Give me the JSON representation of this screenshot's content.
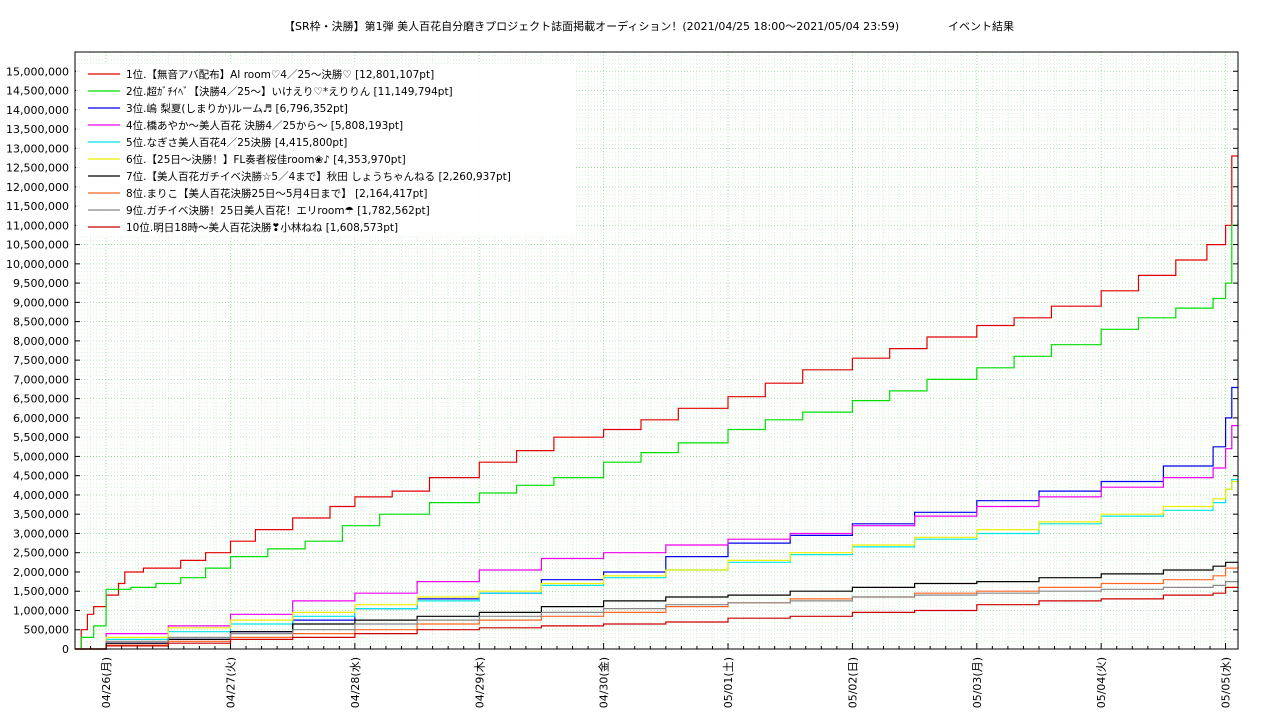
{
  "chart_data": {
    "type": "line",
    "title": "【SR枠・決勝】第1弾 美人百花自分磨きプロジェクト誌面掲載オーディション！(2021/04/25 18:00～2021/05/04 23:59)",
    "subtitle": "イベント結果",
    "xlabel": "",
    "ylabel": "",
    "x_ticks": [
      "04/26(月)",
      "04/27(火)",
      "04/28(水)",
      "04/29(木)",
      "04/30(金)",
      "05/01(土)",
      "05/02(日)",
      "05/03(月)",
      "05/04(火)",
      "05/05(水)"
    ],
    "xlim": [
      -0.25,
      9.1
    ],
    "ylim": [
      0,
      15500000
    ],
    "y_ticks": [
      0,
      500000,
      1000000,
      1500000,
      2000000,
      2500000,
      3000000,
      3500000,
      4000000,
      4500000,
      5000000,
      5500000,
      6000000,
      6500000,
      7000000,
      7500000,
      8000000,
      8500000,
      9000000,
      9500000,
      10000000,
      10500000,
      11000000,
      11500000,
      12000000,
      12500000,
      13000000,
      13500000,
      14000000,
      14500000,
      15000000
    ],
    "y_tick_labels": [
      "0",
      "500,000",
      "1,000,000",
      "1,500,000",
      "2,000,000",
      "2,500,000",
      "3,000,000",
      "3,500,000",
      "4,000,000",
      "4,500,000",
      "5,000,000",
      "5,500,000",
      "6,000,000",
      "6,500,000",
      "7,000,000",
      "7,500,000",
      "8,000,000",
      "8,500,000",
      "9,000,000",
      "9,500,000",
      "10,000,000",
      "10,500,000",
      "11,000,000",
      "11,500,000",
      "12,000,000",
      "12,500,000",
      "13,000,000",
      "13,500,000",
      "14,000,000",
      "14,500,000",
      "15,000,000"
    ],
    "grid": true,
    "legend_position": "top-left",
    "series": [
      {
        "name": "1位.【無音アバ配布】AI room♡4／25〜決勝♡ [12,801,107pt]",
        "color": "#e00000",
        "x": [
          -0.25,
          -0.2,
          -0.15,
          -0.1,
          0,
          0.1,
          0.15,
          0.3,
          0.6,
          0.8,
          1,
          1.2,
          1.5,
          1.8,
          2,
          2.3,
          2.6,
          3,
          3.3,
          3.6,
          4,
          4.3,
          4.6,
          5,
          5.3,
          5.6,
          6,
          6.3,
          6.6,
          7,
          7.3,
          7.6,
          8,
          8.3,
          8.6,
          8.85,
          9,
          9.05,
          9.1
        ],
        "y": [
          0,
          500000,
          900000,
          1100000,
          1400000,
          1700000,
          2000000,
          2100000,
          2300000,
          2500000,
          2800000,
          3100000,
          3400000,
          3700000,
          3950000,
          4100000,
          4450000,
          4850000,
          5150000,
          5500000,
          5700000,
          5950000,
          6250000,
          6550000,
          6900000,
          7250000,
          7550000,
          7800000,
          8100000,
          8400000,
          8600000,
          8900000,
          9300000,
          9700000,
          10100000,
          10500000,
          11000000,
          12800000,
          12801107
        ]
      },
      {
        "name": "2位.超ｶﾞﾁｲﾍﾞ【決勝4／25〜】いけえり♡*えりりん [11,149,794pt]",
        "color": "#00dd00",
        "x": [
          -0.25,
          -0.2,
          -0.1,
          0,
          0.2,
          0.4,
          0.6,
          0.8,
          1,
          1.3,
          1.6,
          1.9,
          2.2,
          2.6,
          3,
          3.3,
          3.6,
          4,
          4.3,
          4.6,
          5,
          5.3,
          5.6,
          6,
          6.3,
          6.6,
          7,
          7.3,
          7.6,
          8,
          8.3,
          8.6,
          8.9,
          9,
          9.05,
          9.1
        ],
        "y": [
          0,
          300000,
          600000,
          1550000,
          1600000,
          1700000,
          1850000,
          2100000,
          2400000,
          2600000,
          2800000,
          3200000,
          3500000,
          3800000,
          4050000,
          4250000,
          4450000,
          4850000,
          5100000,
          5350000,
          5700000,
          5950000,
          6150000,
          6450000,
          6700000,
          7000000,
          7300000,
          7600000,
          7900000,
          8300000,
          8600000,
          8850000,
          9100000,
          9500000,
          11000000,
          11149794
        ]
      },
      {
        "name": "3位.嶋 梨夏(しまりか)ルーム♬ [6,796,352pt]",
        "color": "#0000ee",
        "x": [
          -0.25,
          0,
          0.5,
          1,
          1.5,
          2,
          2.5,
          3,
          3.5,
          4,
          4.5,
          5,
          5.5,
          6,
          6.5,
          7,
          7.5,
          8,
          8.5,
          8.9,
          9,
          9.05,
          9.1
        ],
        "y": [
          0,
          150000,
          250000,
          450000,
          750000,
          1050000,
          1300000,
          1450000,
          1800000,
          2000000,
          2400000,
          2750000,
          2950000,
          3250000,
          3550000,
          3850000,
          4100000,
          4350000,
          4750000,
          5250000,
          6000000,
          6790000,
          6796352
        ]
      },
      {
        "name": "4位.橋あやか～美人百花 決勝4／25から～ [5,808,193pt]",
        "color": "#ee00ee",
        "x": [
          -0.25,
          0,
          0.5,
          1,
          1.5,
          2,
          2.5,
          3,
          3.5,
          4,
          4.5,
          5,
          5.5,
          6,
          6.5,
          7,
          7.5,
          8,
          8.5,
          8.9,
          9,
          9.05,
          9.1
        ],
        "y": [
          0,
          400000,
          600000,
          900000,
          1250000,
          1450000,
          1750000,
          2050000,
          2350000,
          2500000,
          2700000,
          2850000,
          3000000,
          3200000,
          3450000,
          3700000,
          3950000,
          4200000,
          4450000,
          4700000,
          5200000,
          5800000,
          5808193
        ]
      },
      {
        "name": "5位.なぎさ美人百花4／25決勝 [4,415,800pt]",
        "color": "#00e5e5",
        "x": [
          -0.25,
          0,
          0.5,
          1,
          1.5,
          2,
          2.5,
          3,
          3.5,
          4,
          4.5,
          5,
          5.5,
          6,
          6.5,
          7,
          7.5,
          8,
          8.5,
          8.9,
          9,
          9.05,
          9.1
        ],
        "y": [
          0,
          250000,
          450000,
          650000,
          850000,
          1050000,
          1250000,
          1450000,
          1650000,
          1850000,
          2050000,
          2250000,
          2450000,
          2650000,
          2850000,
          3000000,
          3250000,
          3450000,
          3600000,
          3800000,
          4150000,
          4400000,
          4415800
        ]
      },
      {
        "name": "6位.【25日〜決勝！】FL奏者桜佳room❀♪ [4,353,970pt]",
        "color": "#eeee00",
        "x": [
          -0.25,
          0,
          0.5,
          1,
          1.5,
          2,
          2.5,
          3,
          3.5,
          4,
          4.5,
          5,
          5.5,
          6,
          6.5,
          7,
          7.5,
          8,
          8.5,
          8.9,
          9,
          9.05,
          9.1
        ],
        "y": [
          0,
          300000,
          550000,
          750000,
          950000,
          1150000,
          1350000,
          1500000,
          1700000,
          1900000,
          2050000,
          2300000,
          2500000,
          2700000,
          2900000,
          3100000,
          3300000,
          3500000,
          3700000,
          3900000,
          4150000,
          4350000,
          4353970
        ]
      },
      {
        "name": "7位.【美人百花ガチイベ決勝☆5／4まで】秋田 しょうちゃんねる [2,260,937pt]",
        "color": "#000000",
        "x": [
          -0.25,
          0,
          0.5,
          1,
          1.5,
          2,
          2.5,
          3,
          3.5,
          4,
          4.5,
          5,
          5.5,
          6,
          6.5,
          7,
          7.5,
          8,
          8.5,
          8.9,
          9,
          9.1
        ],
        "y": [
          0,
          150000,
          250000,
          450000,
          650000,
          750000,
          850000,
          950000,
          1100000,
          1250000,
          1350000,
          1400000,
          1500000,
          1600000,
          1700000,
          1750000,
          1850000,
          1950000,
          2050000,
          2150000,
          2250000,
          2260937
        ]
      },
      {
        "name": "8位.まりこ【美人百花決勝25日〜5月4日まで】 [2,164,417pt]",
        "color": "#ff6622",
        "x": [
          -0.25,
          0,
          0.5,
          1,
          1.5,
          2,
          2.5,
          3,
          3.5,
          4,
          4.5,
          5,
          5.5,
          6,
          6.5,
          7,
          7.5,
          8,
          8.5,
          8.9,
          9,
          9.1
        ],
        "y": [
          0,
          100000,
          200000,
          300000,
          400000,
          500000,
          650000,
          750000,
          850000,
          950000,
          1100000,
          1200000,
          1300000,
          1350000,
          1450000,
          1500000,
          1600000,
          1700000,
          1800000,
          1900000,
          2100000,
          2164417
        ]
      },
      {
        "name": "9位.ガチイベ決勝！25日美人百花！エリroom☂ [1,782,562pt]",
        "color": "#888888",
        "x": [
          -0.25,
          0,
          0.5,
          1,
          1.5,
          2,
          2.5,
          3,
          3.5,
          4,
          4.5,
          5,
          5.5,
          6,
          6.5,
          7,
          7.5,
          8,
          8.5,
          8.9,
          9,
          9.1
        ],
        "y": [
          0,
          200000,
          300000,
          400000,
          500000,
          650000,
          750000,
          850000,
          950000,
          1050000,
          1150000,
          1200000,
          1250000,
          1350000,
          1400000,
          1450000,
          1500000,
          1550000,
          1600000,
          1650000,
          1750000,
          1782562
        ]
      },
      {
        "name": "10位.明日18時〜美人百花決勝❣小林ねね [1,608,573pt]",
        "color": "#cc0000",
        "x": [
          -0.25,
          0,
          0.5,
          1,
          1.5,
          2,
          2.5,
          3,
          3.5,
          4,
          4.5,
          5,
          5.5,
          6,
          6.5,
          7,
          7.5,
          8,
          8.5,
          8.9,
          9,
          9.1
        ],
        "y": [
          0,
          80000,
          150000,
          250000,
          300000,
          400000,
          500000,
          550000,
          600000,
          650000,
          700000,
          800000,
          850000,
          950000,
          1000000,
          1150000,
          1250000,
          1300000,
          1400000,
          1450000,
          1600000,
          1608573
        ]
      }
    ]
  }
}
